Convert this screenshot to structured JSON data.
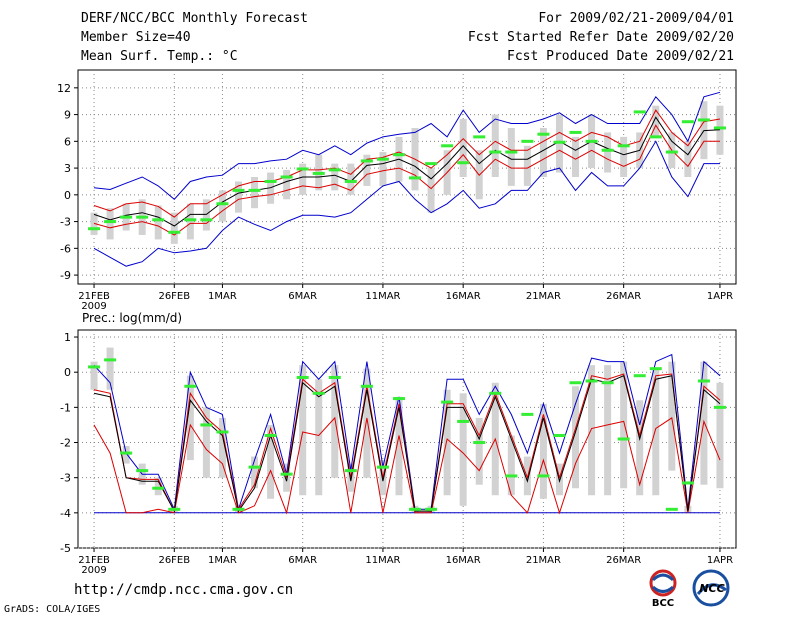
{
  "header": {
    "left": [
      "DERF/NCC/BCC Monthly Forecast",
      "Member Size=40",
      "Mean Surf. Temp.: °C"
    ],
    "right": [
      "For 2009/02/21-2009/04/01",
      "Fcst Started Refer Date 2009/02/20",
      "Fcst Produced Date 2009/02/21"
    ]
  },
  "footer": {
    "url": "http://cmdp.ncc.cma.gov.cn",
    "credit": "GrADS: COLA/IGES"
  },
  "logos": {
    "bcc": "BCC",
    "ncc": "NCC"
  },
  "colors": {
    "envelope": "#0000cc",
    "spread": "#dd0000",
    "mean": "#000000",
    "box": "#d2d2d2",
    "median": "#33ee33"
  },
  "chart_data": [
    {
      "type": "line",
      "title": "Mean Surf. Temp.: °C",
      "x": [
        1,
        2,
        3,
        4,
        5,
        6,
        7,
        8,
        9,
        10,
        11,
        12,
        13,
        14,
        15,
        16,
        17,
        18,
        19,
        20,
        21,
        22,
        23,
        24,
        25,
        26,
        27,
        28,
        29,
        30,
        31,
        32,
        33,
        34,
        35,
        36,
        37,
        38,
        39,
        40
      ],
      "x_ticks": [
        {
          "day": 1,
          "label": "21FEB",
          "sub": "2009"
        },
        {
          "day": 6,
          "label": "26FEB"
        },
        {
          "day": 9,
          "label": "1MAR"
        },
        {
          "day": 14,
          "label": "6MAR"
        },
        {
          "day": 19,
          "label": "11MAR"
        },
        {
          "day": 24,
          "label": "16MAR"
        },
        {
          "day": 29,
          "label": "21MAR"
        },
        {
          "day": 34,
          "label": "26MAR"
        },
        {
          "day": 40,
          "label": "1APR"
        }
      ],
      "ylim": [
        -10,
        14
      ],
      "y_ticks": [
        -9,
        -6,
        -3,
        0,
        3,
        6,
        9,
        12
      ],
      "series": [
        {
          "name": "max",
          "color": "#0000cc",
          "values": [
            0.8,
            0.6,
            1.3,
            2,
            1,
            -0.5,
            1.5,
            2,
            2.2,
            3.5,
            3.5,
            3.8,
            4,
            5,
            4.5,
            5.5,
            4.5,
            5.8,
            6.5,
            6.8,
            7,
            8,
            6.5,
            9.5,
            7,
            8.5,
            8,
            8,
            8.5,
            9.2,
            8,
            9,
            8,
            8,
            8,
            11,
            9,
            6,
            11,
            11.5
          ]
        },
        {
          "name": "spread_hi",
          "color": "#dd0000",
          "values": [
            -1.2,
            -1.8,
            -1,
            -0.8,
            -1.3,
            -2.5,
            -1,
            -1,
            0,
            1,
            1.5,
            1.5,
            2,
            2.8,
            2.8,
            3,
            2.3,
            4,
            4.2,
            4.8,
            4,
            3,
            4.5,
            6.3,
            4.5,
            6,
            5,
            5,
            6,
            7,
            6,
            7,
            6.5,
            5.5,
            6,
            9.5,
            7,
            5.5,
            8.2,
            8.5
          ]
        },
        {
          "name": "mean",
          "color": "#000000",
          "values": [
            -2.2,
            -2.8,
            -2.3,
            -2,
            -2.5,
            -3.5,
            -2.2,
            -2.2,
            -0.8,
            0.2,
            0.5,
            0.8,
            1.5,
            2,
            2,
            2.2,
            1.5,
            3.3,
            3.5,
            4,
            3.2,
            1.8,
            3.5,
            5.5,
            3.5,
            5,
            4,
            4,
            5,
            6,
            5,
            6,
            5.2,
            4.5,
            5,
            8.7,
            6,
            4.5,
            7.2,
            7.3
          ]
        },
        {
          "name": "spread_lo",
          "color": "#dd0000",
          "values": [
            -3.2,
            -3.7,
            -3.3,
            -3,
            -3.5,
            -4.5,
            -3.2,
            -3.2,
            -1.8,
            -0.5,
            -0.2,
            0,
            0.5,
            1,
            0.8,
            1.2,
            0.5,
            2.3,
            2.7,
            3,
            2.2,
            0.7,
            2.5,
            4.5,
            2.2,
            4,
            3,
            3,
            4,
            5,
            4,
            5,
            4,
            3.2,
            4,
            7.8,
            5,
            3.2,
            6,
            6
          ]
        },
        {
          "name": "min",
          "color": "#0000cc",
          "values": [
            -6,
            -7,
            -8,
            -7.5,
            -6,
            -6.5,
            -6.3,
            -6,
            -4,
            -2.5,
            -3.3,
            -4,
            -3,
            -2.3,
            -2.3,
            -2.5,
            -2,
            -0.5,
            1,
            1.5,
            -0.5,
            -2,
            -1,
            0.5,
            -1.5,
            -1,
            0.5,
            0.5,
            2.5,
            3,
            0.5,
            2.5,
            1,
            1,
            3,
            6,
            2,
            -0.2,
            3.5,
            3.5
          ]
        },
        {
          "name": "box_top",
          "color": "#d2d2d2",
          "values": [
            -2,
            -1.5,
            -1,
            -0.5,
            -1.2,
            -2,
            -1,
            -0.5,
            0.5,
            1.5,
            2,
            2.5,
            2.8,
            3.5,
            4.5,
            3.5,
            3.5,
            4.5,
            4.8,
            6.5,
            7.5,
            3,
            5,
            8.5,
            5,
            9,
            7.5,
            5.5,
            7.5,
            9,
            6.5,
            9,
            7,
            6.5,
            7,
            10,
            7,
            6,
            10.5,
            10
          ]
        },
        {
          "name": "box_bottom",
          "color": "#d2d2d2",
          "values": [
            -4.5,
            -5,
            -4,
            -4.5,
            -5,
            -5.5,
            -5,
            -4,
            -3,
            -2,
            -1.5,
            -1,
            -0.5,
            0,
            0.5,
            0.5,
            0,
            1,
            1,
            1.5,
            0.5,
            -2,
            0,
            2,
            -0.5,
            2,
            1,
            1,
            2,
            2.5,
            2,
            3,
            2.5,
            2,
            3,
            6.5,
            3,
            2,
            4,
            4.5
          ]
        },
        {
          "name": "median",
          "color": "#33ee33",
          "values": [
            -3.8,
            -3,
            -2.5,
            -2.5,
            -2.8,
            -4.2,
            -2.8,
            -2.8,
            -1,
            0.5,
            0.5,
            1.5,
            2,
            2.9,
            2.4,
            2.8,
            1.5,
            3.8,
            4,
            4.5,
            1.9,
            3.5,
            5.5,
            3.6,
            6.5,
            4.8,
            4.8,
            6,
            6.8,
            5.9,
            7,
            6,
            5,
            5.5,
            9.3,
            6.5,
            4.8,
            8.2,
            8.4,
            7.5
          ]
        }
      ]
    },
    {
      "type": "line",
      "title": "Prec.: log(mm/d)",
      "x": [
        1,
        2,
        3,
        4,
        5,
        6,
        7,
        8,
        9,
        10,
        11,
        12,
        13,
        14,
        15,
        16,
        17,
        18,
        19,
        20,
        21,
        22,
        23,
        24,
        25,
        26,
        27,
        28,
        29,
        30,
        31,
        32,
        33,
        34,
        35,
        36,
        37,
        38,
        39,
        40
      ],
      "x_ticks": [
        {
          "day": 1,
          "label": "21FEB",
          "sub": "2009"
        },
        {
          "day": 6,
          "label": "26FEB"
        },
        {
          "day": 9,
          "label": "1MAR"
        },
        {
          "day": 14,
          "label": "6MAR"
        },
        {
          "day": 19,
          "label": "11MAR"
        },
        {
          "day": 24,
          "label": "16MAR"
        },
        {
          "day": 29,
          "label": "21MAR"
        },
        {
          "day": 34,
          "label": "26MAR"
        },
        {
          "day": 40,
          "label": "1APR"
        }
      ],
      "ylim": [
        -5,
        1.2
      ],
      "y_ticks": [
        -5,
        -4,
        -3,
        -2,
        -1,
        0,
        1
      ],
      "series": [
        {
          "name": "max",
          "color": "#0000cc",
          "values": [
            0.2,
            -0.3,
            -2.3,
            -2.9,
            -2.9,
            -3.9,
            0,
            -1,
            -1.2,
            -3.9,
            -2.5,
            -1.2,
            -2.9,
            0.3,
            -0.2,
            0.3,
            -2.8,
            0.3,
            -2.7,
            -0.7,
            -3.9,
            -3.9,
            -0.2,
            -0.2,
            -1.2,
            -0.4,
            -1.2,
            -2.3,
            -0.9,
            -2.3,
            -0.9,
            0.4,
            0.3,
            0.3,
            -1.5,
            0.3,
            0.5,
            -3.9,
            0.3,
            -0.1
          ]
        },
        {
          "name": "spread_hi",
          "color": "#dd0000",
          "values": [
            -0.5,
            -0.6,
            -3,
            -3.05,
            -3.05,
            -3.95,
            -0.6,
            -1.3,
            -1.7,
            -3.9,
            -3.2,
            -1.6,
            -3,
            -0.2,
            -0.6,
            -0.3,
            -3,
            -0.4,
            -3,
            -0.9,
            -3.95,
            -3.95,
            -0.9,
            -0.9,
            -1.8,
            -0.6,
            -1.8,
            -3,
            -1.2,
            -3,
            -1.6,
            -0.1,
            -0.2,
            -0.05,
            -1.8,
            -0.1,
            -0.05,
            -3.95,
            -0.4,
            -0.8
          ]
        },
        {
          "name": "mean",
          "color": "#000000",
          "values": [
            -0.6,
            -0.7,
            -3,
            -3.1,
            -3.1,
            -3.95,
            -0.8,
            -1.4,
            -1.8,
            -3.95,
            -3.3,
            -1.8,
            -3.1,
            -0.3,
            -0.7,
            -0.4,
            -3.1,
            -0.5,
            -3.1,
            -1,
            -3.95,
            -3.95,
            -1,
            -1,
            -1.9,
            -0.7,
            -1.9,
            -3.1,
            -1.3,
            -3.1,
            -1.7,
            -0.2,
            -0.3,
            -0.1,
            -1.9,
            -0.2,
            -0.1,
            -3.95,
            -0.5,
            -0.9
          ]
        },
        {
          "name": "spread_lo",
          "color": "#dd0000",
          "values": [
            -1.5,
            -2.3,
            -4,
            -4,
            -3.9,
            -4,
            -1.5,
            -2.2,
            -2.6,
            -4,
            -3.8,
            -2.8,
            -4,
            -1.7,
            -1.8,
            -1.3,
            -4,
            -1.3,
            -4,
            -1.8,
            -4,
            -4,
            -1.9,
            -2.3,
            -2.8,
            -1.9,
            -3.5,
            -4,
            -2.5,
            -4,
            -2.6,
            -1.6,
            -1.5,
            -1.4,
            -3.2,
            -1.6,
            -1.3,
            -4,
            -1.4,
            -2.5
          ]
        },
        {
          "name": "min",
          "color": "#0000cc",
          "values": [
            -4,
            -4,
            -4,
            -4,
            -4,
            -4,
            -4,
            -4,
            -4,
            -4,
            -4,
            -4,
            -4,
            -4,
            -4,
            -4,
            -4,
            -4,
            -4,
            -4,
            -4,
            -4,
            -4,
            -4,
            -4,
            -4,
            -4,
            -4,
            -4,
            -4,
            -4,
            -4,
            -4,
            -4,
            -4,
            -4,
            -4,
            -4,
            -4,
            -4
          ]
        },
        {
          "name": "box_top",
          "color": "#d2d2d2",
          "values": [
            0.3,
            0.7,
            -2.1,
            -2.6,
            -3,
            -3.8,
            -0.1,
            -1,
            -1.3,
            -3.8,
            -2.4,
            -1.5,
            -2.6,
            0.2,
            -0.2,
            0.2,
            -2.6,
            0.1,
            -2.5,
            -0.7,
            -3.8,
            -3.8,
            -0.5,
            -0.6,
            -1.3,
            -0.3,
            -1.8,
            -2.4,
            -0.9,
            -2.6,
            -0.4,
            0.2,
            0.2,
            0.3,
            -0.8,
            0.1,
            0.3,
            -3.8,
            0.3,
            -0.3
          ]
        },
        {
          "name": "box_bottom",
          "color": "#d2d2d2",
          "values": [
            -0.5,
            -0.5,
            -2.6,
            -3.2,
            -3.5,
            -4,
            -2.5,
            -3,
            -3,
            -4,
            -3.3,
            -3.6,
            -3.4,
            -3.5,
            -3.5,
            -3,
            -3.4,
            -3,
            -3.5,
            -3.5,
            -4,
            -4,
            -3.5,
            -3.8,
            -3.2,
            -3.5,
            -3.5,
            -3.5,
            -3.6,
            -3.5,
            -3.3,
            -3.5,
            -3.5,
            -3.3,
            -3.5,
            -3.5,
            -2.8,
            -4,
            -3.2,
            -3.3
          ]
        },
        {
          "name": "median",
          "color": "#33ee33",
          "values": [
            0.15,
            0.35,
            -2.3,
            -2.8,
            -3.3,
            -3.9,
            -0.4,
            -1.5,
            -1.7,
            -3.9,
            -2.7,
            -1.8,
            -2.9,
            -0.15,
            -0.6,
            -0.15,
            -2.8,
            -0.4,
            -2.7,
            -0.75,
            -3.9,
            -3.9,
            -0.85,
            -1.4,
            -2,
            -0.6,
            -2.95,
            -1.2,
            -2.95,
            -1.8,
            -0.3,
            -0.25,
            -0.3,
            -1.9,
            -0.1,
            0.1,
            -3.9,
            -3.15,
            -0.25,
            -1
          ]
        }
      ]
    }
  ]
}
